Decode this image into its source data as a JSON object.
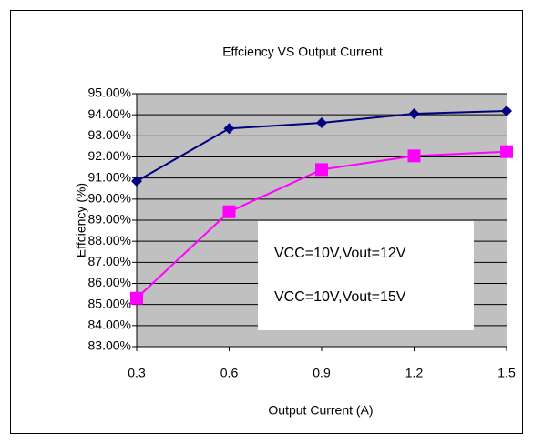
{
  "chart_data": {
    "type": "line",
    "title": "Effciency VS Output Current",
    "xlabel": "Output Current (A)",
    "ylabel": "Effciency (%)",
    "x": [
      0.3,
      0.6,
      0.9,
      1.2,
      1.5
    ],
    "xlim": [
      0.3,
      1.5
    ],
    "xticks": [
      0.3,
      0.6,
      0.9,
      1.2,
      1.5
    ],
    "ylim": [
      83,
      95
    ],
    "yticks": [
      {
        "value": 83,
        "label": "83.00%"
      },
      {
        "value": 84,
        "label": "84.00%"
      },
      {
        "value": 85,
        "label": "85.00%"
      },
      {
        "value": 86,
        "label": "86.00%"
      },
      {
        "value": 87,
        "label": "87.00%"
      },
      {
        "value": 88,
        "label": "88.00%"
      },
      {
        "value": 89,
        "label": "89.00%"
      },
      {
        "value": 90,
        "label": "90.00%"
      },
      {
        "value": 91,
        "label": "91.00%"
      },
      {
        "value": 92,
        "label": "92.00%"
      },
      {
        "value": 93,
        "label": "93.00%"
      },
      {
        "value": 94,
        "label": "94.00%"
      },
      {
        "value": 95,
        "label": "95.00%"
      }
    ],
    "grid": true,
    "legend": "lower right",
    "series": [
      {
        "name": "VCC=10V,Vout=12V",
        "color": "#000080",
        "marker": "diamond",
        "values": [
          90.85,
          93.35,
          93.62,
          94.05,
          94.18
        ]
      },
      {
        "name": "VCC=10V,Vout=15V",
        "color": "#ff00ff",
        "marker": "square",
        "values": [
          85.3,
          89.4,
          91.4,
          92.05,
          92.25
        ]
      }
    ]
  }
}
